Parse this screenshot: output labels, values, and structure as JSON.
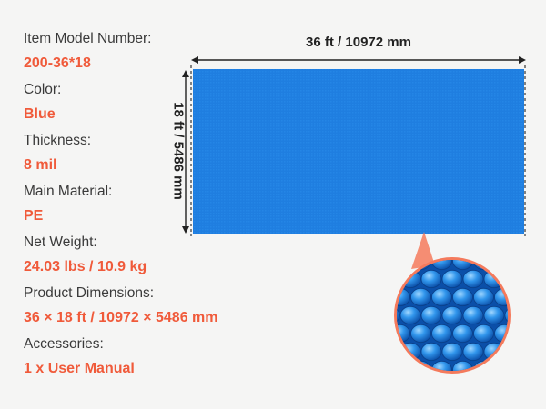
{
  "specs": [
    {
      "label": "Item Model Number:",
      "value": "200-36*18"
    },
    {
      "label": "Color:",
      "value": "Blue"
    },
    {
      "label": "Thickness:",
      "value": "8 mil"
    },
    {
      "label": "Main Material:",
      "value": "PE"
    },
    {
      "label": "Net Weight:",
      "value": "24.03 lbs / 10.9 kg"
    },
    {
      "label": "Product Dimensions:",
      "value": "36 × 18 ft / 10972 × 5486 mm"
    },
    {
      "label": "Accessories:",
      "value": "1 x User Manual"
    }
  ],
  "dimensions": {
    "width_label": "36 ft / 10972 mm",
    "height_label": "18 ft / 5486 mm"
  },
  "colors": {
    "label_text": "#3a3a3a",
    "value_accent": "#f05a3a",
    "cover_blue": "#1f7ee0",
    "zoom_border": "#f47a5c"
  }
}
